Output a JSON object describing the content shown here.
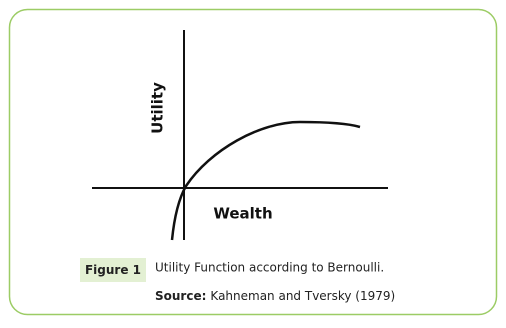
{
  "figure": {
    "y_axis_label": "Utility",
    "x_axis_label": "Wealth"
  },
  "caption": {
    "label": "Figure 1",
    "text": "Utility Function according to Bernoulli.",
    "source_label": "Source:",
    "source_text": "Kahneman and Tversky (1979)"
  }
}
